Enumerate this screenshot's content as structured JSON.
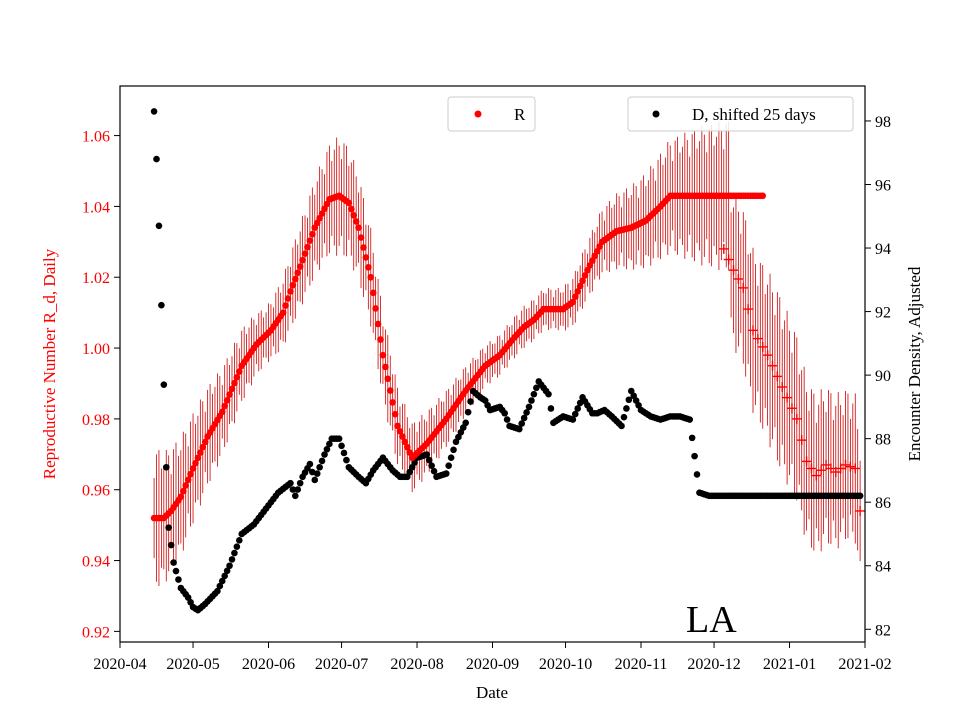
{
  "chart_data": {
    "type": "scatter",
    "annotation": "LA",
    "xlabel": "Date",
    "x_ticks": [
      "2020-04",
      "2020-05",
      "2020-06",
      "2020-07",
      "2020-08",
      "2020-09",
      "2020-10",
      "2020-11",
      "2020-12",
      "2021-01",
      "2021-02"
    ],
    "xlim_days": [
      0,
      306
    ],
    "y_left": {
      "label": "Reproductive Number R_d, Daily",
      "color": "#ff0000",
      "lim": [
        0.917,
        1.074
      ],
      "ticks": [
        "0.92",
        "0.94",
        "0.96",
        "0.98",
        "1.00",
        "1.02",
        "1.04",
        "1.06"
      ],
      "tick_values": [
        0.92,
        0.94,
        0.96,
        0.98,
        1.0,
        1.02,
        1.04,
        1.06
      ]
    },
    "y_right": {
      "label": "Encounter Density, Adjusted",
      "color": "#000000",
      "lim": [
        81.6,
        99.1
      ],
      "ticks": [
        "82",
        "84",
        "86",
        "88",
        "90",
        "92",
        "94",
        "96",
        "98"
      ],
      "tick_values": [
        82,
        84,
        86,
        88,
        90,
        92,
        94,
        96,
        98
      ]
    },
    "legend_left": {
      "label": "R",
      "color": "#ff0000",
      "position": "top-center"
    },
    "legend_right": {
      "label": "D, shifted 25 days",
      "color": "#000000",
      "position": "top-right"
    },
    "series": [
      {
        "name": "R",
        "axis": "left",
        "marker": "dot",
        "color": "#ff0000",
        "x_day_range": [
          14,
          264
        ],
        "key_x": [
          14,
          18,
          21,
          25,
          30,
          36,
          42,
          50,
          56,
          62,
          67,
          70,
          74,
          80,
          86,
          90,
          94,
          98,
          103,
          108,
          114,
          120,
          126,
          134,
          142,
          150,
          156,
          162,
          166,
          170,
          174,
          178,
          182,
          186,
          192,
          198,
          204,
          210,
          216,
          222,
          226,
          230,
          236,
          240,
          246,
          252,
          258,
          264
        ],
        "key_y": [
          0.952,
          0.952,
          0.954,
          0.958,
          0.966,
          0.975,
          0.982,
          0.995,
          1.001,
          1.005,
          1.01,
          1.016,
          1.023,
          1.034,
          1.042,
          1.043,
          1.041,
          1.034,
          1.02,
          0.998,
          0.978,
          0.969,
          0.973,
          0.98,
          0.988,
          0.995,
          0.998,
          1.003,
          1.006,
          1.008,
          1.011,
          1.011,
          1.011,
          1.013,
          1.022,
          1.03,
          1.033,
          1.034,
          1.036,
          1.04,
          1.043,
          1.043,
          1.043,
          1.043,
          1.043,
          1.043,
          1.043,
          1.043
        ]
      },
      {
        "name": "R (projected)",
        "axis": "left",
        "marker": "plus",
        "color": "#ff0000",
        "x_day_range": [
          248,
          304
        ],
        "key_x": [
          248,
          252,
          256,
          260,
          266,
          272,
          278,
          282,
          286,
          290,
          294,
          298,
          302,
          304
        ],
        "key_y": [
          1.028,
          1.022,
          1.017,
          1.005,
          0.998,
          0.989,
          0.98,
          0.968,
          0.964,
          0.967,
          0.965,
          0.967,
          0.966,
          0.954
        ]
      },
      {
        "name": "D, shifted 25 days",
        "axis": "right",
        "marker": "dot",
        "color": "#000000",
        "x_day_range": [
          14,
          304
        ],
        "key_x": [
          14,
          15,
          16,
          17,
          18,
          19,
          20,
          22,
          25,
          28,
          30,
          32,
          35,
          40,
          45,
          50,
          55,
          60,
          65,
          70,
          72,
          75,
          78,
          80,
          84,
          87,
          90,
          94,
          98,
          101,
          104,
          108,
          112,
          115,
          118,
          122,
          126,
          130,
          134,
          138,
          142,
          145,
          148,
          150,
          152,
          156,
          158,
          160,
          164,
          168,
          172,
          176,
          178,
          182,
          186,
          190,
          194,
          196,
          199,
          202,
          206,
          210,
          214,
          218,
          222,
          226,
          230,
          234,
          238,
          242,
          246,
          250,
          254,
          258,
          262,
          264,
          266,
          268,
          270,
          272,
          276,
          280,
          290,
          304
        ],
        "key_y": [
          98.3,
          96.8,
          94.7,
          92.2,
          89.7,
          87.1,
          85.2,
          84.1,
          83.3,
          83.0,
          82.7,
          82.6,
          82.8,
          83.2,
          84.0,
          85.0,
          85.3,
          85.8,
          86.3,
          86.6,
          86.2,
          86.8,
          87.2,
          86.7,
          87.5,
          88.0,
          88.0,
          87.1,
          86.8,
          86.6,
          87.0,
          87.4,
          87.0,
          86.8,
          86.8,
          87.4,
          87.5,
          86.8,
          86.9,
          87.9,
          88.5,
          89.5,
          89.3,
          89.2,
          88.9,
          89.0,
          88.8,
          88.4,
          88.3,
          89.0,
          89.8,
          89.4,
          88.5,
          88.7,
          88.6,
          89.3,
          88.8,
          88.8,
          88.9,
          88.7,
          88.4,
          89.5,
          88.9,
          88.7,
          88.6,
          88.7,
          88.7,
          88.6,
          86.3,
          86.2,
          86.2,
          86.2,
          86.2,
          86.2,
          86.2,
          86.2,
          86.2,
          86.2,
          86.2,
          86.2,
          86.2,
          86.2,
          86.2,
          86.2
        ]
      },
      {
        "name": "R error bars",
        "axis": "left",
        "type": "errorbar",
        "color": "#cc0000",
        "half_width_by_day": {
          "key_x": [
            14,
            60,
            90,
            120,
            150,
            180,
            210,
            240,
            270,
            304
          ],
          "key_y": [
            0.02,
            0.008,
            0.017,
            0.01,
            0.006,
            0.006,
            0.012,
            0.02,
            0.025,
            0.021
          ]
        }
      }
    ]
  }
}
